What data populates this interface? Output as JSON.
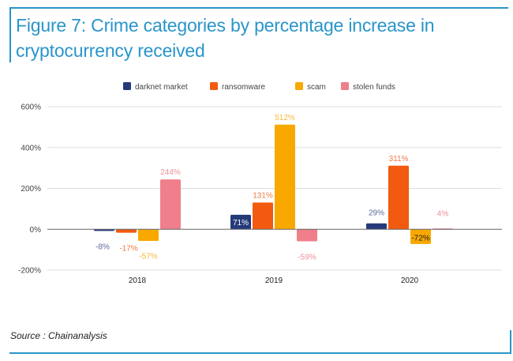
{
  "figure": {
    "title": "Figure 7: Crime categories by percentage increase in cryptocurrency received",
    "source": "Source : Chainanalysis",
    "frame_color": "#2a95c9"
  },
  "chart_data": {
    "type": "bar",
    "title": "Figure 7: Crime categories by percentage increase in cryptocurrency received",
    "xlabel": "",
    "ylabel": "",
    "categories": [
      "2018",
      "2019",
      "2020"
    ],
    "series": [
      {
        "name": "darknet market",
        "color": "#253a7a",
        "values": [
          -8,
          71,
          29
        ],
        "labels": [
          "-8%",
          "71%",
          "29%"
        ]
      },
      {
        "name": "ransomware",
        "color": "#f25a0f",
        "values": [
          -17,
          131,
          311
        ],
        "labels": [
          "-17%",
          "131%",
          "311%"
        ]
      },
      {
        "name": "scam",
        "color": "#f9a800",
        "values": [
          -57,
          512,
          -72
        ],
        "labels": [
          "-57%",
          "512%",
          "-72%"
        ]
      },
      {
        "name": "stolen funds",
        "color": "#ef7f8a",
        "values": [
          244,
          -59,
          4
        ],
        "labels": [
          "244%",
          "-59%",
          "4%"
        ]
      }
    ],
    "ylim": [
      -200,
      600
    ],
    "yticks": [
      -200,
      0,
      200,
      400,
      600
    ],
    "ytick_labels": [
      "-200%",
      "0%",
      "200%",
      "400%",
      "600%"
    ],
    "grid": true,
    "legend": "top-center"
  }
}
